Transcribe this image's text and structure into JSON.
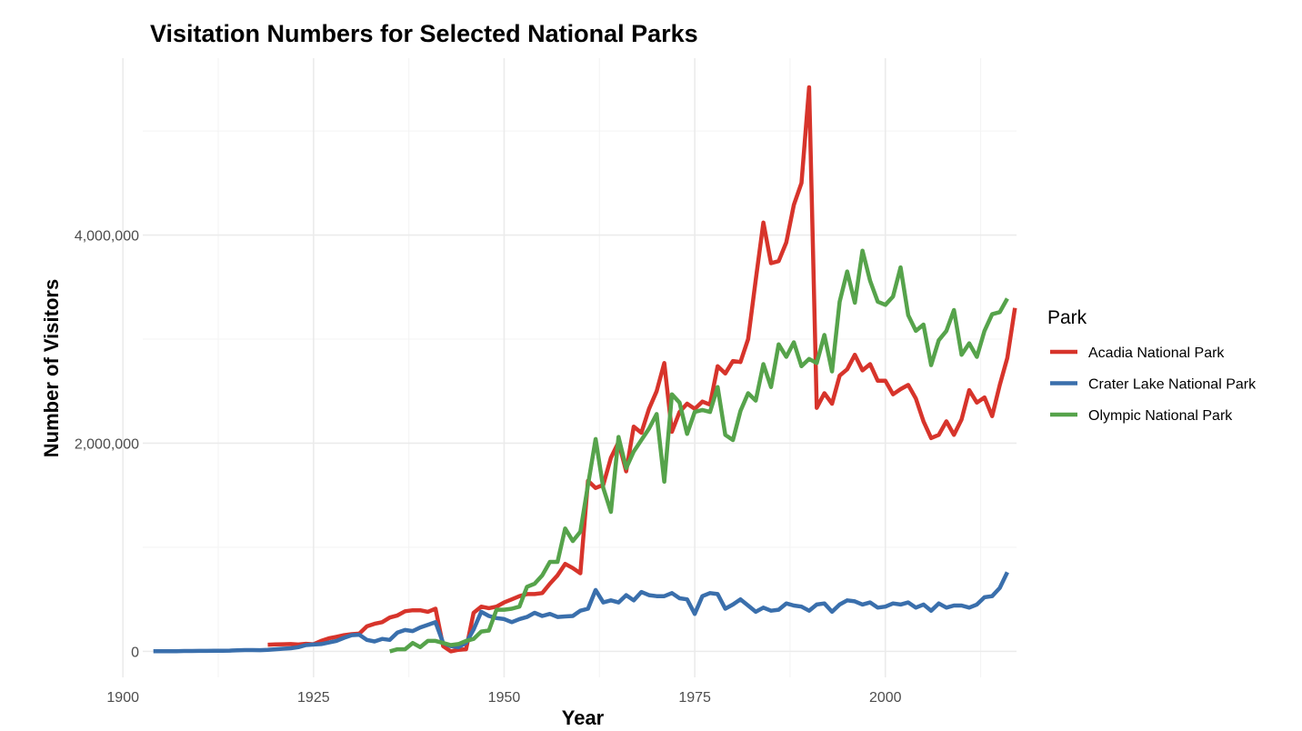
{
  "chart_data": {
    "type": "line",
    "title": "Visitation Numbers for Selected National Parks",
    "xlabel": "Year",
    "ylabel": "Number of Visitors",
    "xlim": [
      1902.6,
      2017.2
    ],
    "ylim": [
      -250000,
      5700000
    ],
    "x_ticks": [
      1900,
      1925,
      1950,
      1975,
      2000
    ],
    "x_tick_labels": [
      "1900",
      "1925",
      "1950",
      "1975",
      "2000"
    ],
    "y_ticks": [
      0,
      2000000,
      4000000
    ],
    "y_tick_labels": [
      "0",
      "2,000,000",
      "4,000,000"
    ],
    "grid": true,
    "legend": {
      "title": "Park",
      "position": "right"
    },
    "series": [
      {
        "name": "Acadia National Park",
        "color": "#d7342b",
        "points": [
          [
            1919,
            64000
          ],
          [
            1920,
            66000
          ],
          [
            1921,
            68000
          ],
          [
            1922,
            70000
          ],
          [
            1923,
            65000
          ],
          [
            1924,
            72000
          ],
          [
            1925,
            68000
          ],
          [
            1926,
            100000
          ],
          [
            1927,
            125000
          ],
          [
            1928,
            140000
          ],
          [
            1929,
            155000
          ],
          [
            1930,
            165000
          ],
          [
            1931,
            170000
          ],
          [
            1932,
            240000
          ],
          [
            1933,
            265000
          ],
          [
            1934,
            280000
          ],
          [
            1935,
            325000
          ],
          [
            1936,
            345000
          ],
          [
            1937,
            385000
          ],
          [
            1938,
            395000
          ],
          [
            1939,
            395000
          ],
          [
            1940,
            380000
          ],
          [
            1941,
            410000
          ],
          [
            1942,
            50000
          ],
          [
            1943,
            0
          ],
          [
            1944,
            15000
          ],
          [
            1945,
            20000
          ],
          [
            1946,
            370000
          ],
          [
            1947,
            430000
          ],
          [
            1948,
            415000
          ],
          [
            1949,
            430000
          ],
          [
            1950,
            470000
          ],
          [
            1951,
            500000
          ],
          [
            1952,
            530000
          ],
          [
            1953,
            550000
          ],
          [
            1954,
            550000
          ],
          [
            1955,
            560000
          ],
          [
            1956,
            650000
          ],
          [
            1957,
            730000
          ],
          [
            1958,
            840000
          ],
          [
            1959,
            800000
          ],
          [
            1960,
            750000
          ],
          [
            1961,
            1640000
          ],
          [
            1962,
            1570000
          ],
          [
            1963,
            1600000
          ],
          [
            1964,
            1860000
          ],
          [
            1965,
            2010000
          ],
          [
            1966,
            1730000
          ],
          [
            1967,
            2160000
          ],
          [
            1968,
            2100000
          ],
          [
            1969,
            2330000
          ],
          [
            1970,
            2500000
          ],
          [
            1971,
            2770000
          ],
          [
            1972,
            2110000
          ],
          [
            1973,
            2300000
          ],
          [
            1974,
            2380000
          ],
          [
            1975,
            2330000
          ],
          [
            1976,
            2400000
          ],
          [
            1977,
            2370000
          ],
          [
            1978,
            2740000
          ],
          [
            1979,
            2670000
          ],
          [
            1980,
            2790000
          ],
          [
            1981,
            2780000
          ],
          [
            1982,
            3000000
          ],
          [
            1983,
            3570000
          ],
          [
            1984,
            4120000
          ],
          [
            1985,
            3730000
          ],
          [
            1986,
            3750000
          ],
          [
            1987,
            3930000
          ],
          [
            1988,
            4290000
          ],
          [
            1989,
            4500000
          ],
          [
            1990,
            5420000
          ],
          [
            1991,
            2340000
          ],
          [
            1992,
            2480000
          ],
          [
            1993,
            2380000
          ],
          [
            1994,
            2650000
          ],
          [
            1995,
            2710000
          ],
          [
            1996,
            2850000
          ],
          [
            1997,
            2700000
          ],
          [
            1998,
            2760000
          ],
          [
            1999,
            2600000
          ],
          [
            2000,
            2600000
          ],
          [
            2001,
            2470000
          ],
          [
            2002,
            2520000
          ],
          [
            2003,
            2560000
          ],
          [
            2004,
            2430000
          ],
          [
            2005,
            2210000
          ],
          [
            2006,
            2050000
          ],
          [
            2007,
            2080000
          ],
          [
            2008,
            2210000
          ],
          [
            2009,
            2080000
          ],
          [
            2010,
            2230000
          ],
          [
            2011,
            2510000
          ],
          [
            2012,
            2390000
          ],
          [
            2013,
            2440000
          ],
          [
            2014,
            2260000
          ],
          [
            2015,
            2560000
          ],
          [
            2016,
            2820000
          ],
          [
            2017,
            3300000
          ]
        ]
      },
      {
        "name": "Crater Lake National Park",
        "color": "#3a6fac",
        "points": [
          [
            1904,
            1000
          ],
          [
            1905,
            1200
          ],
          [
            1906,
            1500
          ],
          [
            1907,
            2000
          ],
          [
            1908,
            3000
          ],
          [
            1909,
            3500
          ],
          [
            1910,
            4000
          ],
          [
            1911,
            4500
          ],
          [
            1912,
            5000
          ],
          [
            1913,
            6000
          ],
          [
            1914,
            7000
          ],
          [
            1915,
            10000
          ],
          [
            1916,
            12000
          ],
          [
            1917,
            12000
          ],
          [
            1918,
            11000
          ],
          [
            1919,
            15000
          ],
          [
            1920,
            20000
          ],
          [
            1921,
            25000
          ],
          [
            1922,
            30000
          ],
          [
            1923,
            40000
          ],
          [
            1924,
            60000
          ],
          [
            1925,
            65000
          ],
          [
            1926,
            70000
          ],
          [
            1927,
            85000
          ],
          [
            1928,
            100000
          ],
          [
            1929,
            130000
          ],
          [
            1930,
            155000
          ],
          [
            1931,
            160000
          ],
          [
            1932,
            110000
          ],
          [
            1933,
            95000
          ],
          [
            1934,
            120000
          ],
          [
            1935,
            110000
          ],
          [
            1936,
            180000
          ],
          [
            1937,
            205000
          ],
          [
            1938,
            195000
          ],
          [
            1939,
            230000
          ],
          [
            1940,
            255000
          ],
          [
            1941,
            280000
          ],
          [
            1942,
            80000
          ],
          [
            1943,
            50000
          ],
          [
            1944,
            40000
          ],
          [
            1945,
            80000
          ],
          [
            1946,
            210000
          ],
          [
            1947,
            380000
          ],
          [
            1948,
            340000
          ],
          [
            1949,
            320000
          ],
          [
            1950,
            310000
          ],
          [
            1951,
            280000
          ],
          [
            1952,
            310000
          ],
          [
            1953,
            330000
          ],
          [
            1954,
            370000
          ],
          [
            1955,
            340000
          ],
          [
            1956,
            360000
          ],
          [
            1957,
            330000
          ],
          [
            1958,
            335000
          ],
          [
            1959,
            340000
          ],
          [
            1960,
            390000
          ],
          [
            1961,
            410000
          ],
          [
            1962,
            590000
          ],
          [
            1963,
            470000
          ],
          [
            1964,
            490000
          ],
          [
            1965,
            470000
          ],
          [
            1966,
            540000
          ],
          [
            1967,
            490000
          ],
          [
            1968,
            570000
          ],
          [
            1969,
            540000
          ],
          [
            1970,
            530000
          ],
          [
            1971,
            530000
          ],
          [
            1972,
            560000
          ],
          [
            1973,
            510000
          ],
          [
            1974,
            500000
          ],
          [
            1975,
            360000
          ],
          [
            1976,
            530000
          ],
          [
            1977,
            560000
          ],
          [
            1978,
            550000
          ],
          [
            1979,
            410000
          ],
          [
            1980,
            450000
          ],
          [
            1981,
            500000
          ],
          [
            1982,
            440000
          ],
          [
            1983,
            380000
          ],
          [
            1984,
            420000
          ],
          [
            1985,
            390000
          ],
          [
            1986,
            400000
          ],
          [
            1987,
            460000
          ],
          [
            1988,
            440000
          ],
          [
            1989,
            430000
          ],
          [
            1990,
            390000
          ],
          [
            1991,
            450000
          ],
          [
            1992,
            460000
          ],
          [
            1993,
            380000
          ],
          [
            1994,
            450000
          ],
          [
            1995,
            490000
          ],
          [
            1996,
            480000
          ],
          [
            1997,
            450000
          ],
          [
            1998,
            470000
          ],
          [
            1999,
            420000
          ],
          [
            2000,
            430000
          ],
          [
            2001,
            460000
          ],
          [
            2002,
            450000
          ],
          [
            2003,
            470000
          ],
          [
            2004,
            420000
          ],
          [
            2005,
            450000
          ],
          [
            2006,
            390000
          ],
          [
            2007,
            460000
          ],
          [
            2008,
            420000
          ],
          [
            2009,
            440000
          ],
          [
            2010,
            440000
          ],
          [
            2011,
            420000
          ],
          [
            2012,
            450000
          ],
          [
            2013,
            520000
          ],
          [
            2014,
            530000
          ],
          [
            2015,
            610000
          ],
          [
            2016,
            760000
          ]
        ]
      },
      {
        "name": "Olympic National Park",
        "color": "#56a34b",
        "points": [
          [
            1935,
            0
          ],
          [
            1936,
            20000
          ],
          [
            1937,
            20000
          ],
          [
            1938,
            80000
          ],
          [
            1939,
            40000
          ],
          [
            1940,
            100000
          ],
          [
            1941,
            100000
          ],
          [
            1942,
            80000
          ],
          [
            1943,
            60000
          ],
          [
            1944,
            70000
          ],
          [
            1945,
            100000
          ],
          [
            1946,
            120000
          ],
          [
            1947,
            190000
          ],
          [
            1948,
            200000
          ],
          [
            1949,
            400000
          ],
          [
            1950,
            400000
          ],
          [
            1951,
            410000
          ],
          [
            1952,
            430000
          ],
          [
            1953,
            620000
          ],
          [
            1954,
            650000
          ],
          [
            1955,
            730000
          ],
          [
            1956,
            860000
          ],
          [
            1957,
            860000
          ],
          [
            1958,
            1180000
          ],
          [
            1959,
            1060000
          ],
          [
            1960,
            1150000
          ],
          [
            1961,
            1600000
          ],
          [
            1962,
            2040000
          ],
          [
            1963,
            1570000
          ],
          [
            1964,
            1340000
          ],
          [
            1965,
            2060000
          ],
          [
            1966,
            1760000
          ],
          [
            1967,
            1920000
          ],
          [
            1968,
            2030000
          ],
          [
            1969,
            2140000
          ],
          [
            1970,
            2280000
          ],
          [
            1971,
            1630000
          ],
          [
            1972,
            2470000
          ],
          [
            1973,
            2390000
          ],
          [
            1974,
            2090000
          ],
          [
            1975,
            2300000
          ],
          [
            1976,
            2320000
          ],
          [
            1977,
            2300000
          ],
          [
            1978,
            2540000
          ],
          [
            1979,
            2080000
          ],
          [
            1980,
            2030000
          ],
          [
            1981,
            2310000
          ],
          [
            1982,
            2480000
          ],
          [
            1983,
            2410000
          ],
          [
            1984,
            2760000
          ],
          [
            1985,
            2540000
          ],
          [
            1986,
            2950000
          ],
          [
            1987,
            2830000
          ],
          [
            1988,
            2970000
          ],
          [
            1989,
            2740000
          ],
          [
            1990,
            2810000
          ],
          [
            1991,
            2770000
          ],
          [
            1992,
            3040000
          ],
          [
            1993,
            2690000
          ],
          [
            1994,
            3360000
          ],
          [
            1995,
            3650000
          ],
          [
            1996,
            3350000
          ],
          [
            1997,
            3850000
          ],
          [
            1998,
            3560000
          ],
          [
            1999,
            3360000
          ],
          [
            2000,
            3330000
          ],
          [
            2001,
            3410000
          ],
          [
            2002,
            3690000
          ],
          [
            2003,
            3230000
          ],
          [
            2004,
            3080000
          ],
          [
            2005,
            3140000
          ],
          [
            2006,
            2750000
          ],
          [
            2007,
            2990000
          ],
          [
            2008,
            3080000
          ],
          [
            2009,
            3280000
          ],
          [
            2010,
            2850000
          ],
          [
            2011,
            2960000
          ],
          [
            2012,
            2830000
          ],
          [
            2013,
            3080000
          ],
          [
            2014,
            3240000
          ],
          [
            2015,
            3260000
          ],
          [
            2016,
            3390000
          ]
        ]
      }
    ]
  }
}
